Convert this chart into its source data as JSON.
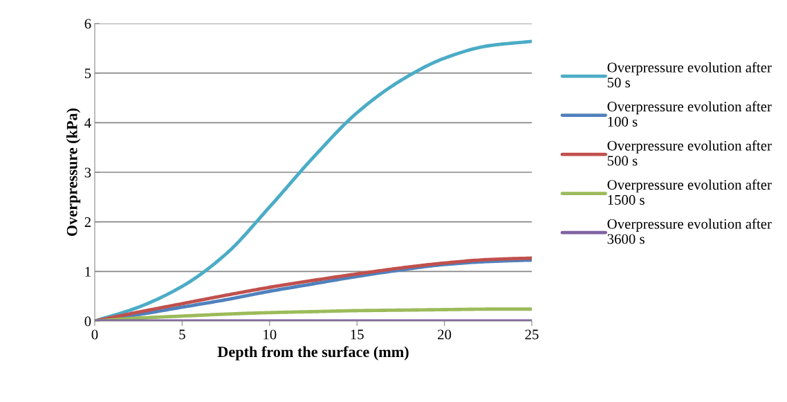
{
  "chart_data": {
    "type": "line",
    "xlabel": "Depth from the surface (mm)",
    "ylabel": "Overpressure (kPa)",
    "x": [
      0,
      2.5,
      5,
      7.5,
      10,
      12.5,
      15,
      17.5,
      20,
      22.5,
      25
    ],
    "series": [
      {
        "name": "Overpressure evolution after 50 s",
        "color": "#4bacc6",
        "values": [
          0,
          0.28,
          0.7,
          1.35,
          2.3,
          3.3,
          4.2,
          4.85,
          5.3,
          5.55,
          5.64
        ]
      },
      {
        "name": "Overpressure evolution after 100 s",
        "color": "#4f81bd",
        "values": [
          0,
          0.13,
          0.28,
          0.43,
          0.6,
          0.75,
          0.9,
          1.03,
          1.14,
          1.2,
          1.23
        ]
      },
      {
        "name": "Overpressure evolution after 500 s",
        "color": "#c0504d",
        "values": [
          0,
          0.18,
          0.35,
          0.52,
          0.68,
          0.82,
          0.95,
          1.07,
          1.17,
          1.24,
          1.27
        ]
      },
      {
        "name": "Overpressure evolution after 1500 s",
        "color": "#9bbb59",
        "values": [
          0,
          0.06,
          0.1,
          0.14,
          0.17,
          0.19,
          0.21,
          0.22,
          0.23,
          0.24,
          0.24
        ]
      },
      {
        "name": "Overpressure evolution after 3600 s",
        "color": "#8064a2",
        "values": [
          0,
          0,
          0,
          0,
          0,
          0,
          0,
          0,
          0,
          0,
          0
        ]
      }
    ],
    "xlim": [
      0,
      25
    ],
    "xticks": [
      0,
      5,
      10,
      15,
      20,
      25
    ],
    "ylim": [
      0,
      6
    ],
    "yticks": [
      0,
      1,
      2,
      3,
      4,
      5,
      6
    ],
    "grid": "y",
    "legend": "right",
    "marker": "none",
    "line_style": "solid"
  }
}
